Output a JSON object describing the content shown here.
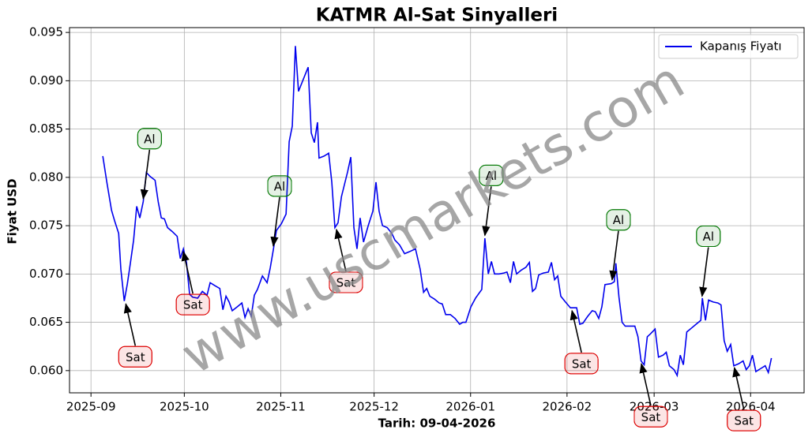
{
  "chart_data": {
    "type": "line",
    "title": "KATMR Al-Sat Sinyalleri",
    "xlabel": "Tarih: 09-04-2026",
    "ylabel": "Fiyat USD",
    "watermark": "www.uscmarkets.com",
    "grid": true,
    "legend": "upper right",
    "xlim": [
      -6.9,
      229.2
    ],
    "xticks": [
      {
        "value": 0,
        "label": "2025-09"
      },
      {
        "value": 30,
        "label": "2025-10"
      },
      {
        "value": 61,
        "label": "2025-11"
      },
      {
        "value": 91,
        "label": "2025-12"
      },
      {
        "value": 122,
        "label": "2026-01"
      },
      {
        "value": 153,
        "label": "2026-02"
      },
      {
        "value": 181,
        "label": "2026-03"
      },
      {
        "value": 212,
        "label": "2026-04"
      }
    ],
    "ylim": [
      0.0577,
      0.0955
    ],
    "yticks": [
      {
        "value": 0.06,
        "label": "0.060"
      },
      0.065,
      {
        "value": 0.07,
        "label": "0.070"
      },
      0.075,
      {
        "value": 0.08,
        "label": "0.080"
      },
      0.085,
      {
        "value": 0.09,
        "label": "0.090"
      },
      0.095
    ],
    "series": [
      {
        "name": "Kapanış Fiyatı",
        "color": "#0000ee",
        "x": [
          3.8,
          5.1,
          6.6,
          7.6,
          8.9,
          9.6,
          10.7,
          11.7,
          12.7,
          13.7,
          14.7,
          15.7,
          16.8,
          17.8,
          19.0,
          20.6,
          21.6,
          22.6,
          23.6,
          24.6,
          26.1,
          27.7,
          28.7,
          29.7,
          30.7,
          31.7,
          32.7,
          34.3,
          35.8,
          37.3,
          38.3,
          39.8,
          41.4,
          42.4,
          43.4,
          44.4,
          45.4,
          47.0,
          48.5,
          49.5,
          50.5,
          51.5,
          52.5,
          53.5,
          55.1,
          56.6,
          57.6,
          58.6,
          59.6,
          61.2,
          62.7,
          63.7,
          64.7,
          65.7,
          66.7,
          68.3,
          69.8,
          70.8,
          71.8,
          72.8,
          73.3,
          74.9,
          76.4,
          77.4,
          78.4,
          79.4,
          80.5,
          82.5,
          83.5,
          84.5,
          85.5,
          86.5,
          87.6,
          89.1,
          90.6,
          91.6,
          92.6,
          93.7,
          95.2,
          96.7,
          97.7,
          99.2,
          100.8,
          102.3,
          104.3,
          105.8,
          106.9,
          107.9,
          108.9,
          110.4,
          111.9,
          112.9,
          114.0,
          115.5,
          117.0,
          118.5,
          119.5,
          120.5,
          122.1,
          123.6,
          125.6,
          126.6,
          127.7,
          128.7,
          129.7,
          131.2,
          132.7,
          133.7,
          134.8,
          135.8,
          136.8,
          138.3,
          139.8,
          140.9,
          141.9,
          142.9,
          143.9,
          145.4,
          147.0,
          148.0,
          149.0,
          150.0,
          151.0,
          152.5,
          154.1,
          156.1,
          157.1,
          158.1,
          159.6,
          161.1,
          162.1,
          163.2,
          164.2,
          165.2,
          167.2,
          168.2,
          168.7,
          169.7,
          170.7,
          171.7,
          173.2,
          174.8,
          175.8,
          176.8,
          177.8,
          178.8,
          179.8,
          181.3,
          182.4,
          183.9,
          184.9,
          185.9,
          187.4,
          188.4,
          189.4,
          190.4,
          191.5,
          193.0,
          194.5,
          196.0,
          196.5,
          197.5,
          198.5,
          200.0,
          201.5,
          202.5,
          203.5,
          204.5,
          205.6,
          206.6,
          208.1,
          209.6,
          210.6,
          211.6,
          212.6,
          213.7,
          215.2,
          216.7,
          217.7,
          218.7
        ],
        "values": [
          0.0822,
          0.0795,
          0.0766,
          0.0755,
          0.0742,
          0.0705,
          0.0672,
          0.069,
          0.0712,
          0.0735,
          0.077,
          0.0758,
          0.0775,
          0.0805,
          0.0801,
          0.0797,
          0.0775,
          0.0758,
          0.0757,
          0.0748,
          0.0744,
          0.0739,
          0.0716,
          0.0726,
          0.0712,
          0.0679,
          0.0676,
          0.0675,
          0.0682,
          0.0678,
          0.0691,
          0.0688,
          0.0685,
          0.0663,
          0.0677,
          0.0671,
          0.0662,
          0.0666,
          0.067,
          0.0655,
          0.0664,
          0.0656,
          0.0678,
          0.0684,
          0.0698,
          0.0691,
          0.0706,
          0.0725,
          0.0745,
          0.0752,
          0.0762,
          0.0837,
          0.0853,
          0.0936,
          0.0889,
          0.0902,
          0.0914,
          0.0846,
          0.0836,
          0.0857,
          0.082,
          0.0822,
          0.0825,
          0.0795,
          0.0748,
          0.0753,
          0.078,
          0.0806,
          0.0821,
          0.0748,
          0.0726,
          0.0758,
          0.0733,
          0.075,
          0.0765,
          0.0795,
          0.0765,
          0.075,
          0.0748,
          0.0742,
          0.0735,
          0.073,
          0.0721,
          0.0723,
          0.0726,
          0.0705,
          0.0681,
          0.0685,
          0.0677,
          0.0674,
          0.067,
          0.0669,
          0.0658,
          0.0658,
          0.0654,
          0.0648,
          0.065,
          0.065,
          0.0666,
          0.0675,
          0.0684,
          0.0737,
          0.07,
          0.0713,
          0.07,
          0.07,
          0.0701,
          0.0702,
          0.0691,
          0.0713,
          0.07,
          0.0704,
          0.0707,
          0.0712,
          0.0682,
          0.0685,
          0.0699,
          0.0701,
          0.0702,
          0.0712,
          0.0694,
          0.0698,
          0.0677,
          0.0671,
          0.0665,
          0.0665,
          0.0648,
          0.0649,
          0.0656,
          0.0662,
          0.0661,
          0.0654,
          0.0666,
          0.0689,
          0.069,
          0.0692,
          0.0711,
          0.0676,
          0.065,
          0.0646,
          0.0646,
          0.0646,
          0.0635,
          0.061,
          0.0606,
          0.0635,
          0.0638,
          0.0643,
          0.0614,
          0.0616,
          0.0619,
          0.0605,
          0.0601,
          0.0595,
          0.0616,
          0.0606,
          0.064,
          0.0644,
          0.0648,
          0.0652,
          0.0675,
          0.0652,
          0.0673,
          0.0671,
          0.067,
          0.0668,
          0.0631,
          0.062,
          0.0627,
          0.0605,
          0.0607,
          0.061,
          0.0601,
          0.0605,
          0.0616,
          0.0599,
          0.0602,
          0.0605,
          0.0598,
          0.0613
        ]
      }
    ],
    "annotations": [
      {
        "text": "Sat",
        "x": 11.2,
        "y": 0.0669,
        "color": "#dd0000"
      },
      {
        "text": "Al",
        "x": 16.8,
        "y": 0.0778,
        "color": "#007700"
      },
      {
        "text": "Sat",
        "x": 29.7,
        "y": 0.0723,
        "color": "#dd0000"
      },
      {
        "text": "Al",
        "x": 58.6,
        "y": 0.0729,
        "color": "#007700"
      },
      {
        "text": "Sat",
        "x": 78.9,
        "y": 0.0746,
        "color": "#dd0000"
      },
      {
        "text": "Al",
        "x": 126.6,
        "y": 0.074,
        "color": "#007700"
      },
      {
        "text": "Sat",
        "x": 154.6,
        "y": 0.0662,
        "color": "#dd0000"
      },
      {
        "text": "Al",
        "x": 167.5,
        "y": 0.0694,
        "color": "#007700"
      },
      {
        "text": "Sat",
        "x": 176.9,
        "y": 0.0607,
        "color": "#dd0000"
      },
      {
        "text": "Al",
        "x": 196.4,
        "y": 0.0677,
        "color": "#007700"
      },
      {
        "text": "Sat",
        "x": 206.8,
        "y": 0.0603,
        "color": "#dd0000"
      }
    ]
  }
}
